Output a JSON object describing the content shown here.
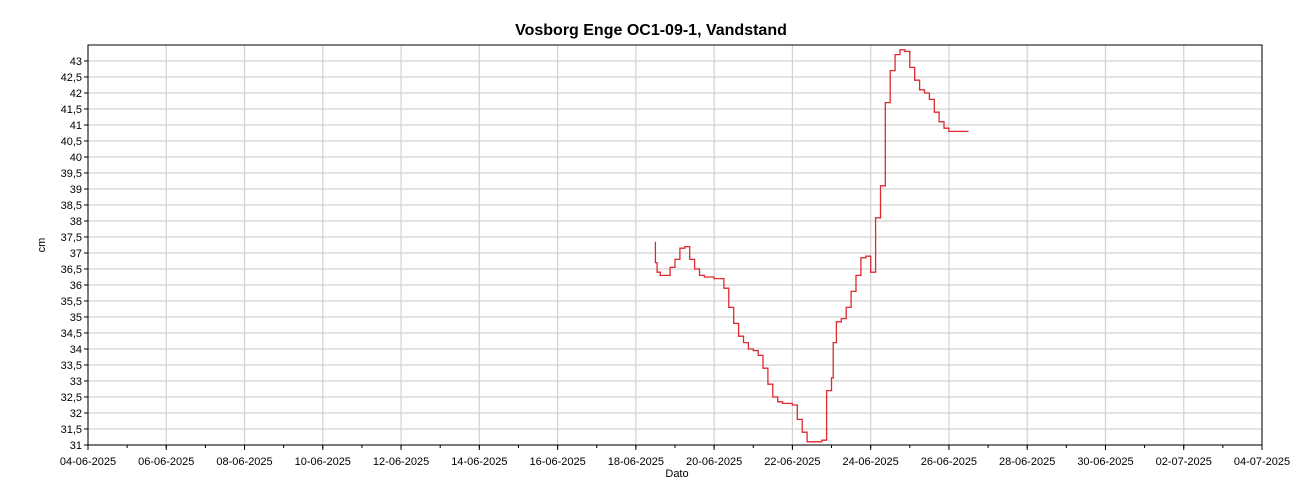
{
  "chart_data": {
    "type": "line",
    "title": "Vosborg Enge OC1-09-1, Vandstand",
    "xlabel": "Dato",
    "ylabel": "cm",
    "xlim": [
      "2025-06-04",
      "2025-07-04"
    ],
    "ylim": [
      31,
      43.5
    ],
    "grid": true,
    "x_ticks": [
      "04-06-2025",
      "06-06-2025",
      "08-06-2025",
      "10-06-2025",
      "12-06-2025",
      "14-06-2025",
      "16-06-2025",
      "18-06-2025",
      "20-06-2025",
      "22-06-2025",
      "24-06-2025",
      "26-06-2025",
      "28-06-2025",
      "30-06-2025",
      "02-07-2025",
      "04-07-2025"
    ],
    "y_ticks": [
      "31",
      "31,5",
      "32",
      "32,5",
      "33",
      "33,5",
      "34",
      "34,5",
      "35",
      "35,5",
      "36",
      "36,5",
      "37",
      "37,5",
      "38",
      "38,5",
      "39",
      "39,5",
      "40",
      "40,5",
      "41",
      "41,5",
      "42",
      "42,5",
      "43"
    ],
    "series": [
      {
        "color": "#e0282f",
        "x": [
          "2025-06-18 12:00",
          "2025-06-18 12:00",
          "2025-06-18 13:00",
          "2025-06-18 15:00",
          "2025-06-18 18:00",
          "2025-06-18 21:00",
          "2025-06-19 00:00",
          "2025-06-19 03:00",
          "2025-06-19 06:00",
          "2025-06-19 09:00",
          "2025-06-19 12:00",
          "2025-06-19 15:00",
          "2025-06-19 18:00",
          "2025-06-19 21:00",
          "2025-06-20 00:00",
          "2025-06-20 06:00",
          "2025-06-20 09:00",
          "2025-06-20 12:00",
          "2025-06-20 15:00",
          "2025-06-20 18:00",
          "2025-06-20 21:00",
          "2025-06-21 00:00",
          "2025-06-21 03:00",
          "2025-06-21 06:00",
          "2025-06-21 09:00",
          "2025-06-21 12:00",
          "2025-06-21 15:00",
          "2025-06-21 18:00",
          "2025-06-21 21:00",
          "2025-06-22 00:00",
          "2025-06-22 03:00",
          "2025-06-22 06:00",
          "2025-06-22 09:00",
          "2025-06-22 12:00",
          "2025-06-22 15:00",
          "2025-06-22 18:00",
          "2025-06-22 21:00",
          "2025-06-23 00:00",
          "2025-06-23 01:00",
          "2025-06-23 03:00",
          "2025-06-23 06:00",
          "2025-06-23 09:00",
          "2025-06-23 12:00",
          "2025-06-23 15:00",
          "2025-06-23 18:00",
          "2025-06-23 21:00",
          "2025-06-24 00:00",
          "2025-06-24 03:00",
          "2025-06-24 06:00",
          "2025-06-24 09:00",
          "2025-06-24 12:00",
          "2025-06-24 15:00",
          "2025-06-24 18:00",
          "2025-06-24 21:00",
          "2025-06-25 00:00",
          "2025-06-25 03:00",
          "2025-06-25 06:00",
          "2025-06-25 09:00",
          "2025-06-25 12:00",
          "2025-06-25 15:00",
          "2025-06-25 18:00",
          "2025-06-25 21:00",
          "2025-06-26 00:00",
          "2025-06-26 03:00",
          "2025-06-26 06:00",
          "2025-06-26 09:00",
          "2025-06-26 12:00"
        ],
        "y": [
          37.35,
          36.7,
          36.4,
          36.3,
          36.3,
          36.55,
          36.8,
          37.15,
          37.2,
          36.8,
          36.5,
          36.3,
          36.25,
          36.25,
          36.2,
          35.9,
          35.3,
          34.8,
          34.4,
          34.2,
          34.0,
          33.95,
          33.8,
          33.4,
          32.9,
          32.5,
          32.35,
          32.3,
          32.3,
          32.25,
          31.8,
          31.4,
          31.1,
          31.1,
          31.1,
          31.15,
          32.7,
          33.1,
          34.2,
          34.85,
          34.95,
          35.3,
          35.8,
          36.3,
          36.85,
          36.9,
          36.4,
          38.1,
          39.1,
          41.7,
          42.7,
          43.2,
          43.35,
          43.3,
          42.8,
          42.4,
          42.1,
          42.0,
          41.8,
          41.4,
          41.1,
          40.9,
          40.8,
          40.8,
          40.8,
          40.8,
          40.8
        ]
      }
    ]
  }
}
